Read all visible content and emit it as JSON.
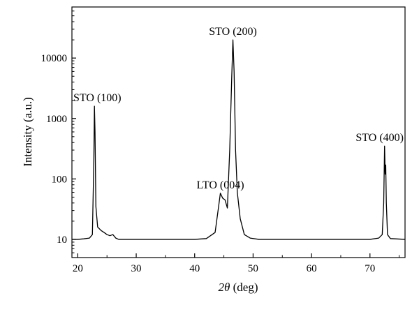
{
  "chart_data": {
    "type": "line",
    "title": "",
    "xlabel": {
      "symbol": "2θ",
      "unit": "(deg)"
    },
    "ylabel": "Intensity (a.u.)",
    "xlim": [
      19,
      76
    ],
    "ylim": [
      5,
      70000
    ],
    "yscale": "log",
    "grid": false,
    "legend": "none",
    "x_ticks": [
      20,
      30,
      40,
      50,
      60,
      70
    ],
    "y_ticks": [
      10,
      100,
      1000,
      10000
    ],
    "colors": {
      "line": "#000000",
      "axis": "#000000"
    },
    "series": [
      {
        "points": [
          [
            19.0,
            10
          ],
          [
            20.0,
            10
          ],
          [
            21.0,
            10.2
          ],
          [
            22.0,
            10.5
          ],
          [
            22.5,
            12
          ],
          [
            22.75,
            200
          ],
          [
            22.85,
            1600
          ],
          [
            22.95,
            600
          ],
          [
            23.1,
            35
          ],
          [
            23.4,
            16
          ],
          [
            24.0,
            14
          ],
          [
            24.5,
            13
          ],
          [
            25.0,
            12
          ],
          [
            25.5,
            11.5
          ],
          [
            26.0,
            12
          ],
          [
            26.5,
            10.5
          ],
          [
            27.0,
            10
          ],
          [
            30.0,
            10
          ],
          [
            35.0,
            10
          ],
          [
            40.0,
            10
          ],
          [
            42.0,
            10.3
          ],
          [
            43.5,
            13
          ],
          [
            44.1,
            35
          ],
          [
            44.4,
            58
          ],
          [
            44.8,
            48
          ],
          [
            45.2,
            45
          ],
          [
            45.6,
            33
          ],
          [
            46.0,
            300
          ],
          [
            46.35,
            5000
          ],
          [
            46.55,
            20000
          ],
          [
            46.75,
            6000
          ],
          [
            47.0,
            300
          ],
          [
            47.3,
            60
          ],
          [
            47.8,
            22
          ],
          [
            48.5,
            12
          ],
          [
            49.5,
            10.5
          ],
          [
            51.0,
            10
          ],
          [
            55.0,
            10
          ],
          [
            60.0,
            10
          ],
          [
            65.0,
            10
          ],
          [
            70.0,
            10
          ],
          [
            71.5,
            10.5
          ],
          [
            72.1,
            12
          ],
          [
            72.35,
            40
          ],
          [
            72.5,
            350
          ],
          [
            72.6,
            120
          ],
          [
            72.7,
            170
          ],
          [
            72.8,
            40
          ],
          [
            73.0,
            12
          ],
          [
            73.5,
            10.3
          ],
          [
            76.0,
            10
          ]
        ]
      }
    ],
    "annotations": [
      {
        "text": "STO (100)",
        "x": 22.85,
        "y": 1600
      },
      {
        "text": "STO (200)",
        "x": 46.55,
        "y": 20000
      },
      {
        "text": "LTO (004)",
        "x": 44.4,
        "y": 58
      },
      {
        "text": "STO (400)",
        "x": 72.5,
        "y": 350
      }
    ]
  }
}
